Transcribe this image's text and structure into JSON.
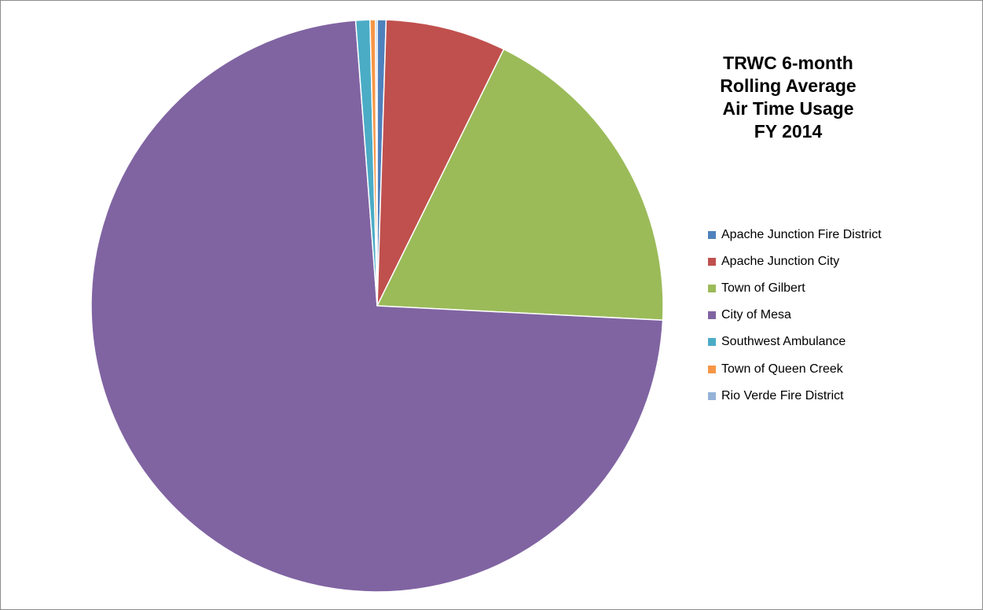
{
  "chart_data": {
    "type": "pie",
    "title_lines": [
      "TRWC 6-month",
      "Rolling Average",
      "Air Time Usage",
      "FY 2014"
    ],
    "legend_position": "right",
    "categories": [
      "Apache Junction Fire District",
      "Apache Junction City",
      "Town of Gilbert",
      "City of Mesa",
      "Southwest Ambulance",
      "Town of Queen Creek",
      "Rio Verde Fire District"
    ],
    "values": [
      0.5,
      6.8,
      18.5,
      73.0,
      0.8,
      0.3,
      0.1
    ],
    "colors": [
      "#4F81BD",
      "#C0504D",
      "#9BBB59",
      "#8064A2",
      "#4BACC6",
      "#F79646",
      "#95B3D7"
    ]
  }
}
